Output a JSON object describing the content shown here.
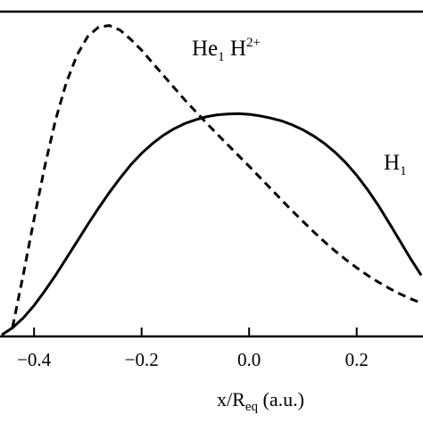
{
  "chart_data": {
    "type": "line",
    "xlabel": {
      "main": "x/R",
      "subscript": "eq",
      "suffix": " (a.u.)"
    },
    "xlim": [
      -0.46,
      0.32
    ],
    "ylim": [
      0,
      1.05
    ],
    "x_ticks": [
      -0.4,
      -0.2,
      0.0,
      0.2
    ],
    "x_tick_labels": [
      "−0.4",
      "−0.2",
      "0.0",
      "0.2"
    ],
    "grid": false,
    "series": [
      {
        "name": "H1",
        "label_main": "H",
        "label_sub": "1",
        "style": "solid",
        "color": "#000000",
        "x": [
          -0.46,
          -0.44,
          -0.42,
          -0.4,
          -0.38,
          -0.36,
          -0.34,
          -0.32,
          -0.3,
          -0.28,
          -0.26,
          -0.24,
          -0.22,
          -0.2,
          -0.18,
          -0.16,
          -0.14,
          -0.12,
          -0.1,
          -0.08,
          -0.06,
          -0.04,
          -0.02,
          0.0,
          0.02,
          0.04,
          0.06,
          0.08,
          0.1,
          0.12,
          0.14,
          0.16,
          0.18,
          0.2,
          0.22,
          0.24,
          0.26,
          0.28,
          0.3,
          0.32
        ],
        "y": [
          0.005,
          0.028,
          0.06,
          0.1,
          0.147,
          0.198,
          0.252,
          0.307,
          0.362,
          0.415,
          0.465,
          0.512,
          0.555,
          0.592,
          0.623,
          0.65,
          0.671,
          0.688,
          0.7,
          0.71,
          0.716,
          0.719,
          0.72,
          0.718,
          0.713,
          0.706,
          0.697,
          0.684,
          0.668,
          0.648,
          0.624,
          0.595,
          0.561,
          0.521,
          0.475,
          0.424,
          0.368,
          0.31,
          0.252,
          0.198
        ]
      },
      {
        "name": "He1 H2+",
        "label_main": "He",
        "label_sub": "1",
        "label_main2": " H",
        "label_sup": "2+",
        "style": "dashed",
        "color": "#000000",
        "x": [
          -0.44,
          -0.42,
          -0.4,
          -0.38,
          -0.36,
          -0.34,
          -0.32,
          -0.3,
          -0.28,
          -0.26,
          -0.24,
          -0.22,
          -0.2,
          -0.18,
          -0.16,
          -0.14,
          -0.12,
          -0.1,
          -0.08,
          -0.06,
          -0.04,
          -0.02,
          0.0,
          0.02,
          0.04,
          0.06,
          0.08,
          0.1,
          0.12,
          0.14,
          0.16,
          0.18,
          0.2,
          0.22,
          0.24,
          0.26,
          0.28,
          0.3,
          0.32
        ],
        "y": [
          0.03,
          0.2,
          0.38,
          0.55,
          0.7,
          0.82,
          0.91,
          0.97,
          1.0,
          1.005,
          0.99,
          0.96,
          0.925,
          0.885,
          0.845,
          0.805,
          0.765,
          0.728,
          0.691,
          0.655,
          0.62,
          0.585,
          0.55,
          0.514,
          0.478,
          0.442,
          0.406,
          0.372,
          0.338,
          0.306,
          0.276,
          0.248,
          0.222,
          0.198,
          0.176,
          0.156,
          0.138,
          0.122,
          0.108
        ]
      }
    ]
  }
}
